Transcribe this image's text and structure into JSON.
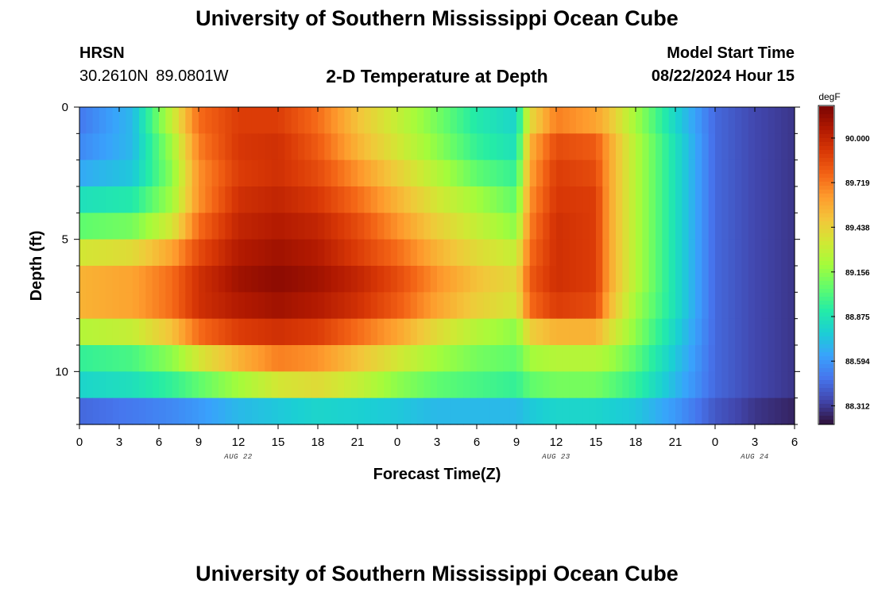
{
  "header": {
    "title": "University of Southern Mississippi Ocean Cube",
    "station": "HRSN",
    "coordinates": "30.2610N  89.0801W",
    "subtitle": "2-D Temperature at Depth",
    "model_start_label": "Model Start Time",
    "model_start_value": "08/22/2024 Hour 15"
  },
  "footer": {
    "title": "University of Southern Mississippi Ocean Cube"
  },
  "chart_data": {
    "type": "heatmap",
    "title": "2-D Temperature at Depth",
    "xlabel": "Forecast Time(Z)",
    "ylabel": "Depth (ft)",
    "x_ticks": [
      "0",
      "3",
      "6",
      "9",
      "12",
      "15",
      "18",
      "21",
      "0",
      "3",
      "6",
      "9",
      "12",
      "15",
      "18",
      "21",
      "0",
      "3",
      "6"
    ],
    "x_hours": [
      0,
      54
    ],
    "date_labels": [
      {
        "label": "AUG 22",
        "hour": 12
      },
      {
        "label": "AUG 23",
        "hour": 36
      },
      {
        "label": "AUG 24",
        "hour": 51
      }
    ],
    "y_ticks": [
      0,
      5,
      10
    ],
    "ylim": [
      0,
      12
    ],
    "colorbar": {
      "unit": "degF",
      "ticks": [
        "90.000",
        "89.719",
        "89.438",
        "89.156",
        "88.875",
        "88.594",
        "88.312"
      ],
      "range": [
        88.2,
        90.2
      ],
      "colors": [
        "#30123b",
        "#4145ab",
        "#4675ed",
        "#39a2fc",
        "#1bcfd4",
        "#24eca6",
        "#61fc6c",
        "#a4fc3b",
        "#d1e834",
        "#f3c63a",
        "#fe9b2d",
        "#f36315",
        "#d93806",
        "#b11901",
        "#7a0402"
      ]
    },
    "depth_levels": [
      0.5,
      1.5,
      2.5,
      3.5,
      4.5,
      5.5,
      6.5,
      7.5,
      8.5,
      9.5,
      10.5,
      11.5
    ],
    "time_knots": [
      0,
      4,
      7,
      9,
      12,
      15,
      18,
      21,
      24,
      27,
      30,
      33,
      34,
      36,
      39,
      40,
      42,
      45,
      48,
      51,
      54
    ],
    "values": [
      [
        88.5,
        88.7,
        89.3,
        89.75,
        89.9,
        89.9,
        89.75,
        89.5,
        89.3,
        89.1,
        88.9,
        88.8,
        89.4,
        89.7,
        89.6,
        89.5,
        89.2,
        88.8,
        88.45,
        88.35,
        88.3
      ],
      [
        88.55,
        88.7,
        89.2,
        89.7,
        89.92,
        89.95,
        89.8,
        89.55,
        89.35,
        89.15,
        88.95,
        88.85,
        89.55,
        89.85,
        89.8,
        89.6,
        89.25,
        88.85,
        88.45,
        88.35,
        88.3
      ],
      [
        88.65,
        88.75,
        89.15,
        89.65,
        89.9,
        89.95,
        89.85,
        89.65,
        89.45,
        89.25,
        89.05,
        88.95,
        89.6,
        89.9,
        89.85,
        89.6,
        89.25,
        88.85,
        88.45,
        88.35,
        88.3
      ],
      [
        88.85,
        88.9,
        89.2,
        89.65,
        89.95,
        90.0,
        89.92,
        89.75,
        89.55,
        89.35,
        89.2,
        89.05,
        89.65,
        89.92,
        89.9,
        89.6,
        89.25,
        88.85,
        88.45,
        88.35,
        88.3
      ],
      [
        89.05,
        89.1,
        89.35,
        89.75,
        90.0,
        90.05,
        90.0,
        89.85,
        89.65,
        89.45,
        89.3,
        89.15,
        89.7,
        89.95,
        89.9,
        89.6,
        89.25,
        88.85,
        88.45,
        88.35,
        88.3
      ],
      [
        89.35,
        89.4,
        89.6,
        89.85,
        90.05,
        90.1,
        90.05,
        89.9,
        89.75,
        89.55,
        89.4,
        89.3,
        89.75,
        89.95,
        89.9,
        89.6,
        89.25,
        88.85,
        88.45,
        88.35,
        88.3
      ],
      [
        89.55,
        89.6,
        89.75,
        89.95,
        90.1,
        90.15,
        90.1,
        90.0,
        89.85,
        89.65,
        89.5,
        89.4,
        89.8,
        89.95,
        89.9,
        89.6,
        89.25,
        88.85,
        88.45,
        88.35,
        88.3
      ],
      [
        89.55,
        89.6,
        89.75,
        89.95,
        90.05,
        90.1,
        90.05,
        89.95,
        89.8,
        89.6,
        89.45,
        89.35,
        89.75,
        89.9,
        89.85,
        89.55,
        89.2,
        88.85,
        88.45,
        88.35,
        88.3
      ],
      [
        89.25,
        89.3,
        89.5,
        89.75,
        89.9,
        89.95,
        89.9,
        89.75,
        89.6,
        89.4,
        89.25,
        89.15,
        89.45,
        89.55,
        89.55,
        89.4,
        89.15,
        88.8,
        88.45,
        88.35,
        88.3
      ],
      [
        88.95,
        89.0,
        89.15,
        89.35,
        89.55,
        89.7,
        89.65,
        89.5,
        89.35,
        89.2,
        89.1,
        89.05,
        89.2,
        89.25,
        89.25,
        89.2,
        89.05,
        88.75,
        88.45,
        88.35,
        88.3
      ],
      [
        88.8,
        88.85,
        88.95,
        89.05,
        89.2,
        89.35,
        89.4,
        89.3,
        89.15,
        89.05,
        89.0,
        88.95,
        89.05,
        89.1,
        89.1,
        89.05,
        88.95,
        88.7,
        88.45,
        88.35,
        88.3
      ],
      [
        88.45,
        88.5,
        88.55,
        88.6,
        88.7,
        88.75,
        88.8,
        88.78,
        88.75,
        88.7,
        88.7,
        88.7,
        88.75,
        88.8,
        88.8,
        88.78,
        88.75,
        88.6,
        88.4,
        88.3,
        88.25
      ]
    ]
  }
}
